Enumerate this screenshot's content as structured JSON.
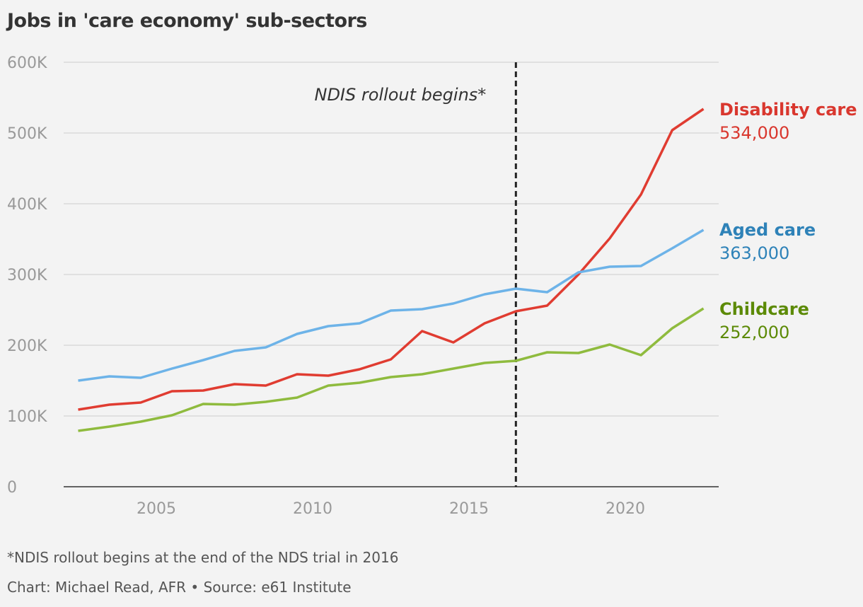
{
  "chart_data": {
    "type": "line",
    "title": "Jobs in 'care economy' sub-sectors",
    "xlabel": "",
    "ylabel": "",
    "ylim": [
      0,
      600000
    ],
    "xlim": [
      2002,
      2023
    ],
    "yticks": [
      0,
      100000,
      200000,
      300000,
      400000,
      500000,
      600000
    ],
    "ytick_labels": [
      "0",
      "100K",
      "200K",
      "300K",
      "400K",
      "500K",
      "600K"
    ],
    "xticks": [
      2005,
      2010,
      2015,
      2020
    ],
    "xtick_labels": [
      "2005",
      "2010",
      "2015",
      "2020"
    ],
    "grid": true,
    "legend": "direct labels at line ends (right)",
    "x": [
      2002.5,
      2003.5,
      2004.5,
      2005.5,
      2006.5,
      2007.5,
      2008.5,
      2009.5,
      2010.5,
      2011.5,
      2012.5,
      2013.5,
      2014.5,
      2015.5,
      2016.5,
      2017.5,
      2018.5,
      2019.5,
      2020.5,
      2021.5,
      2022.5
    ],
    "series": [
      {
        "name": "Disability care",
        "end_label": "534,000",
        "color": "#e03c31",
        "label_color": "#d9372e",
        "values": [
          109000,
          116000,
          119000,
          135000,
          136000,
          145000,
          143000,
          159000,
          157000,
          166000,
          180000,
          220000,
          204000,
          231000,
          248000,
          256000,
          300000,
          351000,
          413000,
          504000,
          534000
        ]
      },
      {
        "name": "Aged care",
        "end_label": "363,000",
        "color": "#6db3e8",
        "label_color": "#2e82b8",
        "values": [
          150000,
          156000,
          154000,
          167000,
          179000,
          192000,
          197000,
          216000,
          227000,
          231000,
          249000,
          251000,
          259000,
          272000,
          280000,
          275000,
          303000,
          311000,
          312000,
          337000,
          363000
        ]
      },
      {
        "name": "Childcare",
        "end_label": "252,000",
        "color": "#8fbb3e",
        "label_color": "#5c8a06",
        "values": [
          79000,
          85000,
          92000,
          101000,
          117000,
          116000,
          120000,
          126000,
          143000,
          147000,
          155000,
          159000,
          167000,
          175000,
          178000,
          190000,
          189000,
          201000,
          186000,
          224000,
          252000
        ]
      }
    ],
    "annotations": [
      {
        "text": "NDIS rollout begins*",
        "x": 2016.5,
        "style": "dashed vertical line"
      }
    ]
  },
  "footnote": "*NDIS rollout begins at the end of the NDS trial in 2016",
  "credit": "Chart: Michael Read, AFR • Source: e61 Institute"
}
